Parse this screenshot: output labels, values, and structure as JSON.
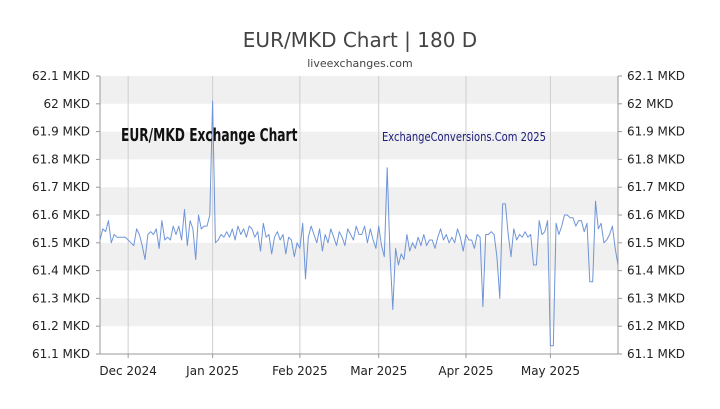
{
  "header": {
    "title": "EUR/MKD Chart | 180 D",
    "subtitle": "liveexchanges.com"
  },
  "chart_inner_title": "EUR/MKD Exchange Chart",
  "watermark": "ExchangeConversions.Com 2025",
  "colors": {
    "line": "#6f95d8",
    "band": "#f0f0f0",
    "vgrid": "#cfcfcf",
    "axis": "#999999"
  },
  "chart_data": {
    "type": "line",
    "title": "EUR/MKD Chart | 180 D",
    "xlabel": "",
    "ylabel": "",
    "ylim": [
      61.1,
      62.1
    ],
    "grid": "horizontal bands, vertical month lines",
    "legend": "none",
    "y_ticks": [
      "62.1 MKD",
      "62 MKD",
      "61.9 MKD",
      "61.8 MKD",
      "61.7 MKD",
      "61.6 MKD",
      "61.5 MKD",
      "61.4 MKD",
      "61.3 MKD",
      "61.2 MKD",
      "61.1 MKD"
    ],
    "y_tick_values": [
      62.1,
      62.0,
      61.9,
      61.8,
      61.7,
      61.6,
      61.5,
      61.4,
      61.3,
      61.2,
      61.1
    ],
    "x_ticks": [
      {
        "label": "Dec 2024",
        "day": 1
      },
      {
        "label": "Jan 2025",
        "day": 31
      },
      {
        "label": "Feb 2025",
        "day": 62
      },
      {
        "label": "Mar 2025",
        "day": 90
      },
      {
        "label": "Apr 2025",
        "day": 121
      },
      {
        "label": "May 2025",
        "day": 151
      }
    ],
    "x_range": [
      -9,
      175
    ],
    "series": [
      {
        "values": [
          [
            -9,
            61.51
          ],
          [
            -8,
            61.55
          ],
          [
            -7,
            61.54
          ],
          [
            -6,
            61.58
          ],
          [
            -5,
            61.5
          ],
          [
            -4,
            61.53
          ],
          [
            -3,
            61.52
          ],
          [
            -2,
            61.52
          ],
          [
            -1,
            61.52
          ],
          [
            0,
            61.52
          ],
          [
            1,
            61.51
          ],
          [
            2,
            61.5
          ],
          [
            3,
            61.49
          ],
          [
            4,
            61.55
          ],
          [
            5,
            61.53
          ],
          [
            6,
            61.49
          ],
          [
            7,
            61.44
          ],
          [
            8,
            61.53
          ],
          [
            9,
            61.54
          ],
          [
            10,
            61.53
          ],
          [
            11,
            61.55
          ],
          [
            12,
            61.48
          ],
          [
            13,
            61.58
          ],
          [
            14,
            61.51
          ],
          [
            15,
            61.52
          ],
          [
            16,
            61.51
          ],
          [
            17,
            61.56
          ],
          [
            18,
            61.53
          ],
          [
            19,
            61.56
          ],
          [
            20,
            61.51
          ],
          [
            21,
            61.62
          ],
          [
            22,
            61.49
          ],
          [
            23,
            61.58
          ],
          [
            24,
            61.55
          ],
          [
            25,
            61.44
          ],
          [
            26,
            61.6
          ],
          [
            27,
            61.55
          ],
          [
            28,
            61.56
          ],
          [
            29,
            61.56
          ],
          [
            30,
            61.6
          ],
          [
            31,
            62.01
          ],
          [
            32,
            61.5
          ],
          [
            33,
            61.51
          ],
          [
            34,
            61.53
          ],
          [
            35,
            61.52
          ],
          [
            36,
            61.54
          ],
          [
            37,
            61.52
          ],
          [
            38,
            61.55
          ],
          [
            39,
            61.51
          ],
          [
            40,
            61.56
          ],
          [
            41,
            61.53
          ],
          [
            42,
            61.55
          ],
          [
            43,
            61.52
          ],
          [
            44,
            61.56
          ],
          [
            45,
            61.55
          ],
          [
            46,
            61.52
          ],
          [
            47,
            61.54
          ],
          [
            48,
            61.47
          ],
          [
            49,
            61.57
          ],
          [
            50,
            61.52
          ],
          [
            51,
            61.53
          ],
          [
            52,
            61.46
          ],
          [
            53,
            61.52
          ],
          [
            54,
            61.54
          ],
          [
            55,
            61.51
          ],
          [
            56,
            61.53
          ],
          [
            57,
            61.46
          ],
          [
            58,
            61.52
          ],
          [
            59,
            61.51
          ],
          [
            60,
            61.45
          ],
          [
            61,
            61.5
          ],
          [
            62,
            61.48
          ],
          [
            63,
            61.57
          ],
          [
            64,
            61.37
          ],
          [
            65,
            61.52
          ],
          [
            66,
            61.56
          ],
          [
            67,
            61.53
          ],
          [
            68,
            61.5
          ],
          [
            69,
            61.55
          ],
          [
            70,
            61.47
          ],
          [
            71,
            61.53
          ],
          [
            72,
            61.5
          ],
          [
            73,
            61.55
          ],
          [
            74,
            61.52
          ],
          [
            75,
            61.49
          ],
          [
            76,
            61.54
          ],
          [
            77,
            61.52
          ],
          [
            78,
            61.49
          ],
          [
            79,
            61.55
          ],
          [
            80,
            61.53
          ],
          [
            81,
            61.51
          ],
          [
            82,
            61.56
          ],
          [
            83,
            61.53
          ],
          [
            84,
            61.53
          ],
          [
            85,
            61.56
          ],
          [
            86,
            61.5
          ],
          [
            87,
            61.55
          ],
          [
            88,
            61.51
          ],
          [
            89,
            61.48
          ],
          [
            90,
            61.56
          ],
          [
            91,
            61.49
          ],
          [
            92,
            61.45
          ],
          [
            93,
            61.77
          ],
          [
            94,
            61.46
          ],
          [
            95,
            61.26
          ],
          [
            96,
            61.48
          ],
          [
            97,
            61.42
          ],
          [
            98,
            61.46
          ],
          [
            99,
            61.44
          ],
          [
            100,
            61.53
          ],
          [
            101,
            61.47
          ],
          [
            102,
            61.5
          ],
          [
            103,
            61.48
          ],
          [
            104,
            61.52
          ],
          [
            105,
            61.49
          ],
          [
            106,
            61.53
          ],
          [
            107,
            61.49
          ],
          [
            108,
            61.51
          ],
          [
            109,
            61.51
          ],
          [
            110,
            61.48
          ],
          [
            111,
            61.52
          ],
          [
            112,
            61.55
          ],
          [
            113,
            61.51
          ],
          [
            114,
            61.53
          ],
          [
            115,
            61.5
          ],
          [
            116,
            61.52
          ],
          [
            117,
            61.5
          ],
          [
            118,
            61.55
          ],
          [
            119,
            61.52
          ],
          [
            120,
            61.47
          ],
          [
            121,
            61.53
          ],
          [
            122,
            61.51
          ],
          [
            123,
            61.51
          ],
          [
            124,
            61.48
          ],
          [
            125,
            61.53
          ],
          [
            126,
            61.52
          ],
          [
            127,
            61.27
          ],
          [
            128,
            61.53
          ],
          [
            129,
            61.53
          ],
          [
            130,
            61.54
          ],
          [
            131,
            61.53
          ],
          [
            132,
            61.45
          ],
          [
            133,
            61.3
          ],
          [
            134,
            61.64
          ],
          [
            135,
            61.64
          ],
          [
            136,
            61.53
          ],
          [
            137,
            61.45
          ],
          [
            138,
            61.55
          ],
          [
            139,
            61.51
          ],
          [
            140,
            61.53
          ],
          [
            141,
            61.52
          ],
          [
            142,
            61.54
          ],
          [
            143,
            61.52
          ],
          [
            144,
            61.53
          ],
          [
            145,
            61.42
          ],
          [
            146,
            61.42
          ],
          [
            147,
            61.58
          ],
          [
            148,
            61.53
          ],
          [
            149,
            61.54
          ],
          [
            150,
            61.58
          ],
          [
            151,
            61.13
          ],
          [
            152,
            61.13
          ],
          [
            153,
            61.57
          ],
          [
            154,
            61.53
          ],
          [
            155,
            61.56
          ],
          [
            156,
            61.6
          ],
          [
            157,
            61.6
          ],
          [
            158,
            61.59
          ],
          [
            159,
            61.59
          ],
          [
            160,
            61.56
          ],
          [
            161,
            61.58
          ],
          [
            162,
            61.58
          ],
          [
            163,
            61.54
          ],
          [
            164,
            61.57
          ],
          [
            165,
            61.36
          ],
          [
            166,
            61.36
          ],
          [
            167,
            61.65
          ],
          [
            168,
            61.55
          ],
          [
            169,
            61.57
          ],
          [
            170,
            61.5
          ],
          [
            171,
            61.51
          ],
          [
            172,
            61.53
          ],
          [
            173,
            61.56
          ],
          [
            174,
            61.48
          ],
          [
            175,
            61.42
          ]
        ]
      }
    ]
  }
}
